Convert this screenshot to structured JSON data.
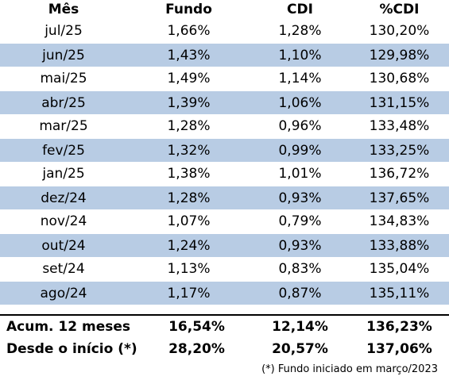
{
  "table": {
    "headers": [
      "Mês",
      "Fundo",
      "CDI",
      "%CDI"
    ],
    "rows": [
      {
        "month": "jul/25",
        "fundo": "1,66%",
        "cdi": "1,28%",
        "pct_cdi": "130,20%"
      },
      {
        "month": "jun/25",
        "fundo": "1,43%",
        "cdi": "1,10%",
        "pct_cdi": "129,98%"
      },
      {
        "month": "mai/25",
        "fundo": "1,49%",
        "cdi": "1,14%",
        "pct_cdi": "130,68%"
      },
      {
        "month": "abr/25",
        "fundo": "1,39%",
        "cdi": "1,06%",
        "pct_cdi": "131,15%"
      },
      {
        "month": "mar/25",
        "fundo": "1,28%",
        "cdi": "0,96%",
        "pct_cdi": "133,48%"
      },
      {
        "month": "fev/25",
        "fundo": "1,32%",
        "cdi": "0,99%",
        "pct_cdi": "133,25%"
      },
      {
        "month": "jan/25",
        "fundo": "1,38%",
        "cdi": "1,01%",
        "pct_cdi": "136,72%"
      },
      {
        "month": "dez/24",
        "fundo": "1,28%",
        "cdi": "0,93%",
        "pct_cdi": "137,65%"
      },
      {
        "month": "nov/24",
        "fundo": "1,07%",
        "cdi": "0,79%",
        "pct_cdi": "134,83%"
      },
      {
        "month": "out/24",
        "fundo": "1,24%",
        "cdi": "0,93%",
        "pct_cdi": "133,88%"
      },
      {
        "month": "set/24",
        "fundo": "1,13%",
        "cdi": "0,83%",
        "pct_cdi": "135,04%"
      },
      {
        "month": "ago/24",
        "fundo": "1,17%",
        "cdi": "0,87%",
        "pct_cdi": "135,11%"
      }
    ],
    "summary": [
      {
        "label": "Acum. 12 meses",
        "fundo": "16,54%",
        "cdi": "12,14%",
        "pct_cdi": "136,23%"
      },
      {
        "label": "Desde o início (*)",
        "fundo": "28,20%",
        "cdi": "20,57%",
        "pct_cdi": "137,06%"
      }
    ]
  },
  "footnote": "(*) Fundo iniciado em março/2023",
  "colors": {
    "row_shade": "#b8cce4",
    "row_plain": "#ffffff",
    "text": "#000000"
  }
}
